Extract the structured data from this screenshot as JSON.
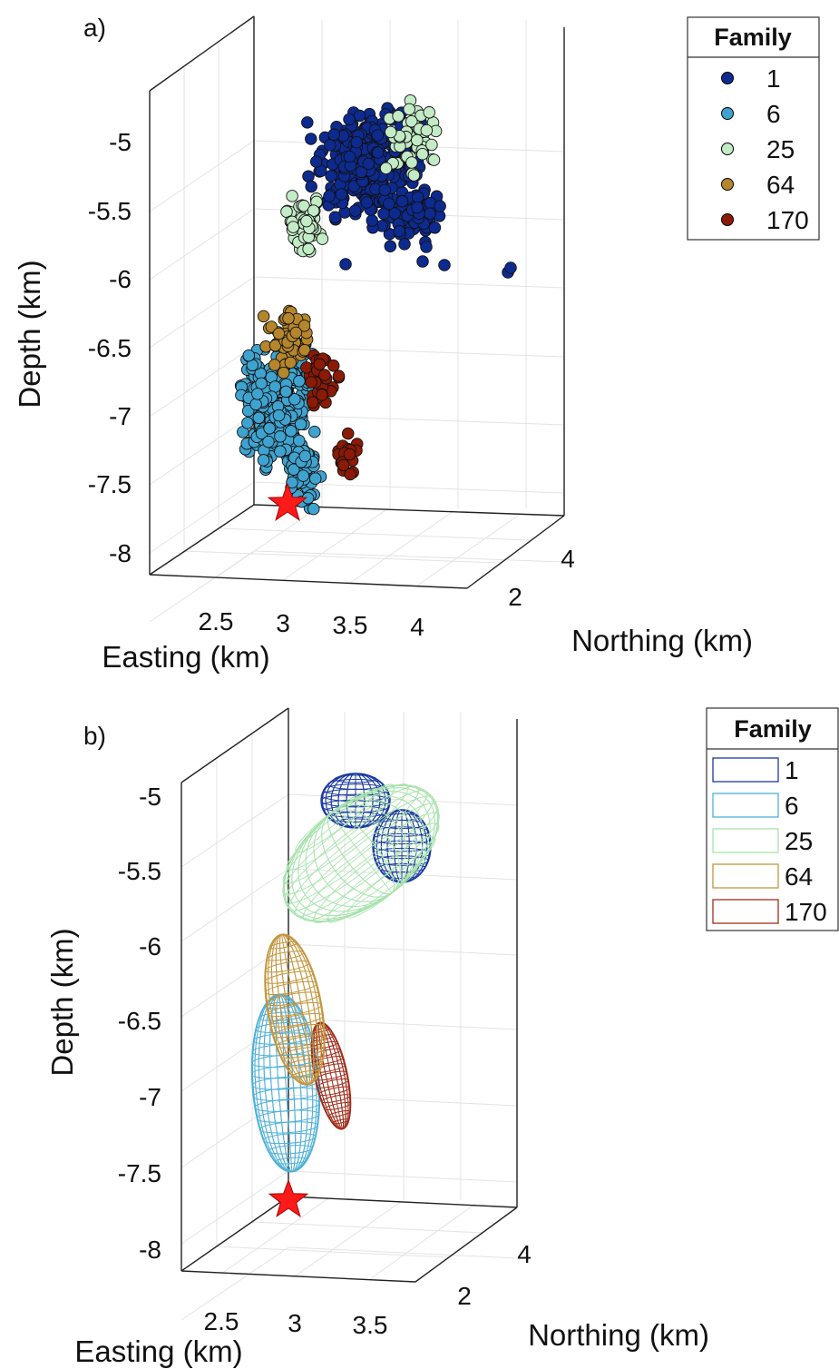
{
  "figure": {
    "panel_a": {
      "label": "a)",
      "xlabel": "Easting (km)",
      "ylabel": "Northing (km)",
      "zlabel": "Depth (km)",
      "x_ticks": [
        "2.5",
        "3",
        "3.5",
        "4"
      ],
      "y_ticks": [
        "2",
        "4"
      ],
      "z_ticks": [
        "-5",
        "-5.5",
        "-6",
        "-6.5",
        "-7",
        "-7.5",
        "-8"
      ],
      "legend_title": "Family",
      "legend_entries": [
        "1",
        "6",
        "25",
        "64",
        "170"
      ]
    },
    "panel_b": {
      "label": "b)",
      "xlabel": "Easting (km)",
      "ylabel": "Northing (km)",
      "zlabel": "Depth (km)",
      "x_ticks": [
        "2.5",
        "3",
        "3.5"
      ],
      "y_ticks": [
        "2",
        "4"
      ],
      "z_ticks": [
        "-5",
        "-5.5",
        "-6",
        "-6.5",
        "-7",
        "-7.5",
        "-8"
      ],
      "legend_title": "Family",
      "legend_entries": [
        "1",
        "6",
        "25",
        "64",
        "170"
      ]
    }
  },
  "colors": {
    "family_1": "#0d2a8f",
    "family_6": "#3fa3cf",
    "family_25": "#c3ebc6",
    "family_64": "#b5862b",
    "family_170": "#8b1a06",
    "star": "#ff1a1a",
    "grid": "#e3e3e3",
    "box": "#222222",
    "wire_1": "#1a3aa0",
    "wire_6": "#4fb0d8",
    "wire_25": "#a8e3ad",
    "wire_64": "#c4963e",
    "wire_170": "#a02e1c"
  },
  "chart_data": [
    {
      "type": "scatter",
      "panel": "a",
      "xlabel": "Easting (km)",
      "ylabel": "Northing (km)",
      "zlabel": "Depth (km)",
      "xlim": [
        2.3,
        4.2
      ],
      "zlim": [
        -8.1,
        -4.5
      ],
      "series": [
        {
          "name": "1",
          "x": [
            3.2,
            3.8
          ],
          "y": [
            3.5,
            4.0
          ],
          "z": [
            -5.0,
            -5.9
          ],
          "n_points": 400
        },
        {
          "name": "6",
          "x": [
            2.7,
            3.3
          ],
          "y": [
            2.5,
            3.5
          ],
          "z": [
            -6.5,
            -7.8
          ],
          "n_points": 350
        },
        {
          "name": "25",
          "x": [
            3.0,
            3.7
          ],
          "y": [
            3.0,
            4.0
          ],
          "z": [
            -4.8,
            -6.0
          ],
          "n_points": 90
        },
        {
          "name": "64",
          "x": [
            3.0,
            3.3
          ],
          "y": [
            2.6,
            3.2
          ],
          "z": [
            -6.3,
            -6.9
          ],
          "n_points": 60
        },
        {
          "name": "170",
          "x": [
            3.2,
            3.6
          ],
          "y": [
            2.4,
            3.2
          ],
          "z": [
            -6.6,
            -7.6
          ],
          "n_points": 50
        }
      ],
      "markers": [
        {
          "label": "",
          "x": 3.0,
          "z": -7.7,
          "symbol": "star"
        }
      ]
    },
    {
      "type": "scatter",
      "panel": "b",
      "xlabel": "Easting (km)",
      "ylabel": "Northing (km)",
      "zlabel": "Depth (km)",
      "xlim": [
        2.3,
        3.8
      ],
      "zlim": [
        -8.1,
        -4.6
      ],
      "series": [
        {
          "name": "1",
          "shape": "ellipsoid",
          "center": [
            3.5,
            3.5,
            -5.25
          ]
        },
        {
          "name": "6",
          "shape": "ellipsoid",
          "center": [
            2.95,
            3.0,
            -7.05
          ]
        },
        {
          "name": "25",
          "shape": "ellipsoid",
          "center": [
            3.4,
            3.5,
            -5.45
          ]
        },
        {
          "name": "64",
          "shape": "ellipsoid",
          "center": [
            3.1,
            3.0,
            -6.6
          ]
        },
        {
          "name": "170",
          "shape": "ellipsoid",
          "center": [
            3.3,
            3.0,
            -6.95
          ]
        }
      ],
      "markers": [
        {
          "label": "",
          "x": 3.0,
          "z": -7.7,
          "symbol": "star"
        }
      ]
    }
  ]
}
